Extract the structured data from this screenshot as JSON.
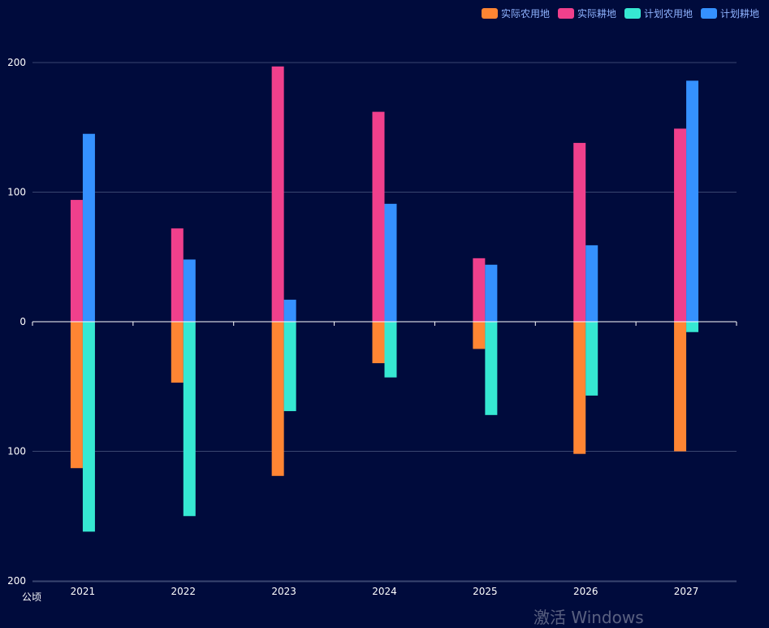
{
  "chart_data": {
    "type": "bar",
    "categories": [
      "2021",
      "2022",
      "2023",
      "2024",
      "2025",
      "2026",
      "2027"
    ],
    "series": [
      {
        "name": "实际农用地",
        "color": "#ff8533",
        "direction": "down",
        "values": [
          113,
          47,
          119,
          32,
          21,
          102,
          100
        ]
      },
      {
        "name": "实际耕地",
        "color": "#f0408c",
        "direction": "up",
        "values": [
          94,
          72,
          197,
          162,
          49,
          138,
          149
        ]
      },
      {
        "name": "计划农用地",
        "color": "#36e8d2",
        "direction": "down",
        "values": [
          162,
          150,
          69,
          43,
          72,
          57,
          8
        ]
      },
      {
        "name": "计划耕地",
        "color": "#3591ff",
        "direction": "up",
        "values": [
          145,
          48,
          17,
          91,
          44,
          59,
          186
        ]
      }
    ],
    "yticks": [
      {
        "label": "200",
        "value": 200
      },
      {
        "label": "100",
        "value": 100
      },
      {
        "label": "0",
        "value": 0
      },
      {
        "label": "100",
        "value": -100
      },
      {
        "label": "200",
        "value": -200
      }
    ],
    "ylim": [
      -200,
      200
    ],
    "ylabel": "公顷",
    "xlabel": "",
    "title": "",
    "grid": true,
    "legend": "top-right"
  },
  "watermark": "激活 Windows"
}
